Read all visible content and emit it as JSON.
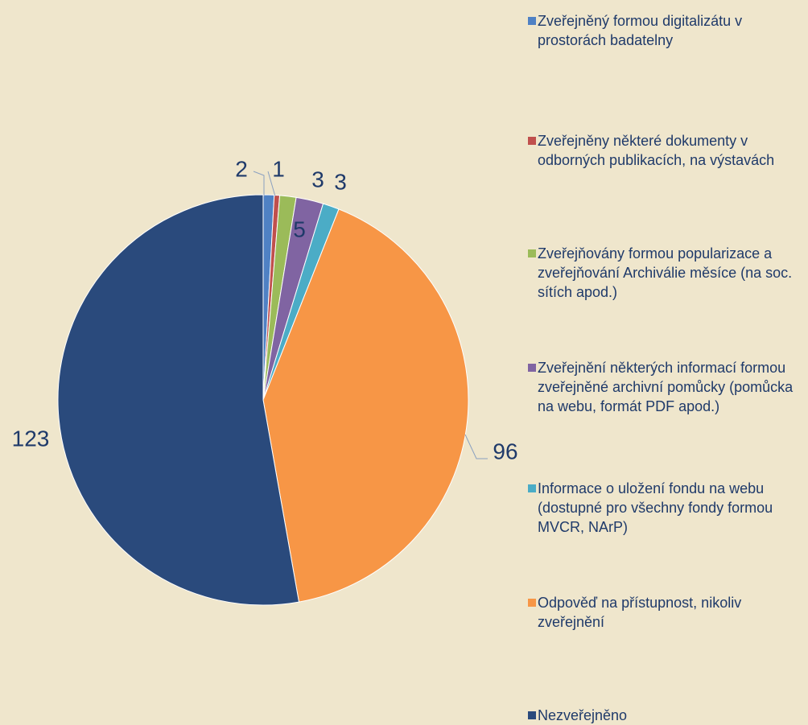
{
  "chart_data": {
    "type": "pie",
    "categories": [
      "Zveřejněný formou digitalizátu v prostorách badatelny",
      "Zveřejněny některé dokumenty v odborných publikacích, na výstavách",
      "Zveřejňovány formou popularizace a zveřejňování Archiválie měsíce (na soc. sítích apod.)",
      "Zveřejnění některých informací formou zveřejněné archivní pomůcky (pomůcka na webu, formát PDF apod.)",
      "Informace o uložení fondu na webu (dostupné pro všechny fondy formou MVCR, NArP)",
      "Odpověď na přístupnost, nikoliv zveřejnění",
      "Nezveřejněno"
    ],
    "values": [
      2,
      1,
      3,
      5,
      3,
      96,
      123
    ],
    "colors": [
      "#4f81c4",
      "#c0504d",
      "#9bbb59",
      "#8064a2",
      "#4bacc6",
      "#f79646",
      "#2a4a7c"
    ]
  }
}
